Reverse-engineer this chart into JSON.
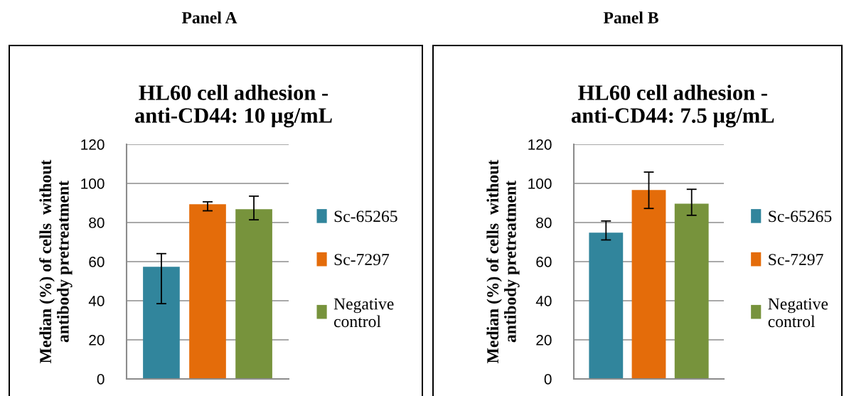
{
  "chart_data": [
    {
      "type": "bar",
      "subtitle": "Panel A",
      "title": "HL60 cell adhesion -\nanti-CD44: 10 µg/mL",
      "ylabel": "Median (%) of cells  without\nantibody pretreatment",
      "categories": [
        null
      ],
      "ylim": [
        0,
        120
      ],
      "yticks": [
        0,
        20,
        40,
        60,
        80,
        100,
        120
      ],
      "grid": "y",
      "legend": "right",
      "series": [
        {
          "name": "Sc-65265",
          "color": "#31859c",
          "values": [
            57.4
          ],
          "errors": [
            [
              38.5,
              64.1
            ]
          ]
        },
        {
          "name": "Sc-7297",
          "color": "#e46c0a",
          "values": [
            89.4
          ],
          "errors": [
            [
              86,
              90.6
            ]
          ]
        },
        {
          "name": "Negative control",
          "color": "#77933c",
          "values": [
            86.8
          ],
          "errors": [
            [
              81.4,
              93.5
            ]
          ]
        }
      ]
    },
    {
      "type": "bar",
      "subtitle": "Panel B",
      "title": "HL60 cell adhesion -\nanti-CD44: 7.5 µg/mL",
      "ylabel": "Median (%) of cells  without\nantibody pretreatment",
      "categories": [
        null
      ],
      "ylim": [
        0,
        120
      ],
      "yticks": [
        0,
        20,
        40,
        60,
        80,
        100,
        120
      ],
      "grid": "y",
      "legend": "right",
      "series": [
        {
          "name": "Sc-65265",
          "color": "#31859c",
          "values": [
            74.8
          ],
          "errors": [
            [
              71.1,
              80.8
            ]
          ]
        },
        {
          "name": "Sc-7297",
          "color": "#e46c0a",
          "values": [
            96.6
          ],
          "errors": [
            [
              87.2,
              105.8
            ]
          ]
        },
        {
          "name": "Negative control",
          "color": "#77933c",
          "values": [
            89.6
          ],
          "errors": [
            [
              83.7,
              97
            ]
          ]
        }
      ]
    }
  ]
}
